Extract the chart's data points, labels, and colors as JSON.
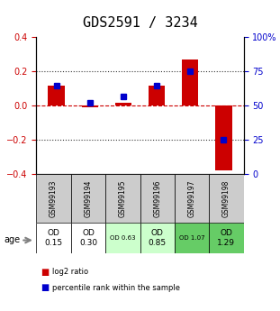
{
  "title": "GDS2591 / 3234",
  "samples": [
    "GSM99193",
    "GSM99194",
    "GSM99195",
    "GSM99196",
    "GSM99197",
    "GSM99198"
  ],
  "log2_ratio": [
    0.12,
    -0.01,
    0.02,
    0.12,
    0.27,
    -0.38
  ],
  "percentile_rank": [
    65,
    52,
    57,
    65,
    75,
    25
  ],
  "bar_color": "#cc0000",
  "dot_color": "#0000cc",
  "ylim_left": [
    -0.4,
    0.4
  ],
  "ylim_right": [
    0,
    100
  ],
  "yticks_left": [
    -0.4,
    -0.2,
    0.0,
    0.2,
    0.4
  ],
  "yticks_right": [
    0,
    25,
    50,
    75,
    100
  ],
  "ytick_labels_right": [
    "0",
    "25",
    "50",
    "75",
    "100%"
  ],
  "hline_zero_color": "#cc0000",
  "hline_dotted_color": "#333333",
  "age_labels": [
    "OD\n0.15",
    "OD\n0.30",
    "OD 0.63",
    "OD\n0.85",
    "OD 1.07",
    "OD\n1.29"
  ],
  "age_bg_colors": [
    "#ffffff",
    "#ffffff",
    "#ccffcc",
    "#ccffcc",
    "#66cc66",
    "#66cc66"
  ],
  "age_fontsize_large": [
    true,
    true,
    false,
    true,
    false,
    true
  ],
  "legend_items": [
    "log2 ratio",
    "percentile rank within the sample"
  ],
  "legend_colors": [
    "#cc0000",
    "#0000cc"
  ],
  "title_fontsize": 11,
  "axis_label_color_left": "#cc0000",
  "axis_label_color_right": "#0000cc",
  "bar_width": 0.5,
  "header_bg": "#cccccc"
}
